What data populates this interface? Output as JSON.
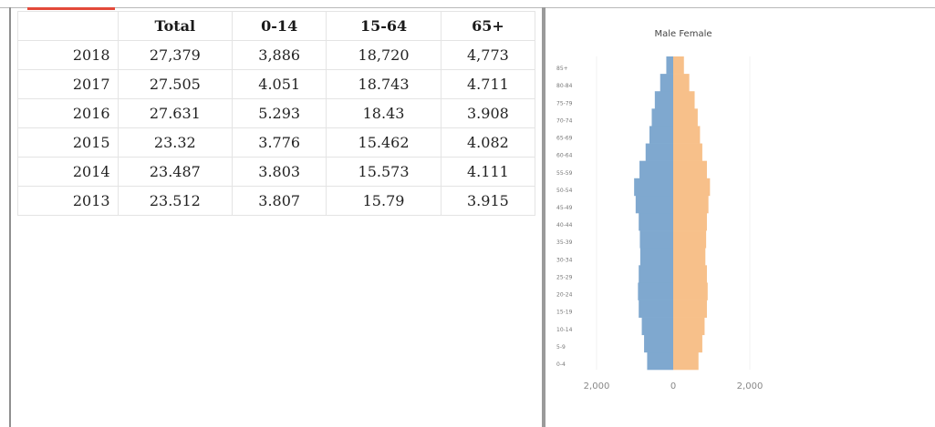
{
  "table": {
    "headers": [
      "",
      "Total",
      "0-14",
      "15-64",
      "65+"
    ],
    "rows": [
      [
        "2018",
        "27,379",
        "3,886",
        "18,720",
        "4,773"
      ],
      [
        "2017",
        "27.505",
        "4.051",
        "18.743",
        "4.711"
      ],
      [
        "2016",
        "27.631",
        "5.293",
        "18.43",
        "3.908"
      ],
      [
        "2015",
        "23.32",
        "3.776",
        "15.462",
        "4.082"
      ],
      [
        "2014",
        "23.487",
        "3.803",
        "15.573",
        "4.111"
      ],
      [
        "2013",
        "23.512",
        "3.807",
        "15.79",
        "3.915"
      ]
    ]
  },
  "chart_data": {
    "type": "bar",
    "orientation": "horizontal-diverging",
    "title": "Male Female",
    "categories": [
      "0-4",
      "5-9",
      "10-14",
      "15-19",
      "20-24",
      "25-29",
      "30-34",
      "35-39",
      "40-44",
      "45-49",
      "50-54",
      "55-59",
      "60-64",
      "65-69",
      "70-74",
      "75-79",
      "80-84",
      "85+"
    ],
    "series": [
      {
        "name": "Male",
        "color": "#7fa8cf",
        "values": [
          -680,
          -760,
          -820,
          -900,
          -920,
          -900,
          -860,
          -870,
          -900,
          -980,
          -1020,
          -880,
          -720,
          -620,
          -560,
          -480,
          -340,
          -180
        ]
      },
      {
        "name": "Female",
        "color": "#f7c08a",
        "values": [
          660,
          760,
          820,
          880,
          900,
          880,
          840,
          860,
          880,
          920,
          960,
          880,
          760,
          700,
          640,
          560,
          420,
          280
        ]
      }
    ],
    "xlim": [
      -2000,
      2000
    ],
    "x_ticks": [
      -2000,
      0,
      2000
    ],
    "x_tick_labels": [
      "2,000",
      "0",
      "2,000"
    ]
  }
}
